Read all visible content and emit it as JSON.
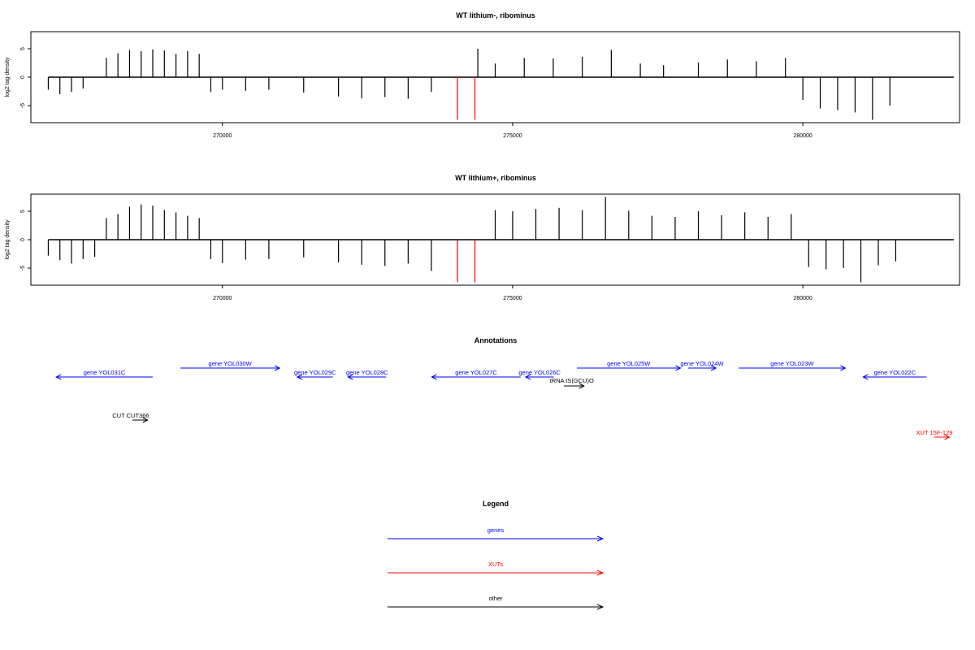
{
  "chart_data": [
    {
      "type": "bar",
      "title": "WT lithium-, ribominus",
      "ylabel": "log2 tag density",
      "xlim": [
        266700,
        282700
      ],
      "ylim": [
        -8,
        8
      ],
      "xticks": [
        270000,
        275000,
        280000
      ],
      "xtick_labels": [
        "270000",
        "275000",
        "280000"
      ],
      "yticks": [
        -5,
        0,
        5
      ],
      "ytick_labels": [
        "-5",
        "0",
        "5"
      ],
      "series": [
        {
          "color": "#000000",
          "x": [
            267000,
            267200,
            267400,
            267600,
            268000,
            268200,
            268400,
            268600,
            268800,
            269000,
            269200,
            269400,
            269600,
            269800,
            270000,
            270400,
            270800,
            271400,
            272000,
            272400,
            272800,
            273200,
            273600,
            274400,
            274700,
            275200,
            275700,
            276200,
            276700,
            277200,
            277600,
            278200,
            278700,
            279200,
            279700,
            280000,
            280300,
            280600,
            280900,
            281200,
            281500
          ],
          "values": [
            -2.2,
            -3.0,
            -2.6,
            -2.0,
            3.4,
            4.2,
            4.8,
            4.6,
            4.9,
            4.7,
            4.1,
            4.6,
            4.1,
            -2.6,
            -2.2,
            -2.4,
            -2.2,
            -2.7,
            -3.4,
            -3.7,
            -3.5,
            -3.8,
            -2.6,
            5.0,
            2.4,
            3.4,
            3.3,
            3.6,
            4.8,
            2.4,
            2.1,
            2.6,
            3.1,
            2.8,
            3.4,
            -4.0,
            -5.5,
            -5.8,
            -6.2,
            -7.5,
            -5.0
          ]
        },
        {
          "color": "#ff0000",
          "x": [
            274050,
            274350
          ],
          "values": [
            -7.5,
            -7.5
          ]
        }
      ]
    },
    {
      "type": "bar",
      "title": "WT lithium+, ribominus",
      "ylabel": "log2 tag density",
      "xlim": [
        266700,
        282700
      ],
      "ylim": [
        -8,
        8
      ],
      "xticks": [
        270000,
        275000,
        280000
      ],
      "xtick_labels": [
        "270000",
        "275000",
        "280000"
      ],
      "yticks": [
        -5,
        0,
        5
      ],
      "ytick_labels": [
        "-5",
        "0",
        "5"
      ],
      "series": [
        {
          "color": "#000000",
          "x": [
            267000,
            267200,
            267400,
            267600,
            267800,
            268000,
            268200,
            268400,
            268600,
            268800,
            269000,
            269200,
            269400,
            269600,
            269800,
            270000,
            270400,
            270800,
            271400,
            272000,
            272400,
            272800,
            273200,
            273600,
            274700,
            275000,
            275400,
            275800,
            276200,
            276600,
            277000,
            277400,
            277800,
            278200,
            278600,
            279000,
            279400,
            279800,
            280100,
            280400,
            280700,
            281000,
            281300,
            281600
          ],
          "values": [
            -2.8,
            -3.6,
            -4.2,
            -3.4,
            -3.0,
            3.8,
            4.5,
            5.8,
            6.2,
            6.0,
            5.2,
            4.8,
            4.2,
            3.8,
            -3.4,
            -4.1,
            -3.5,
            -3.4,
            -3.1,
            -4.0,
            -4.4,
            -4.6,
            -4.2,
            -5.5,
            5.2,
            5.0,
            5.4,
            5.6,
            5.2,
            7.5,
            5.1,
            4.2,
            4.0,
            5.0,
            4.3,
            4.8,
            4.0,
            4.5,
            -4.8,
            -5.2,
            -5.0,
            -7.5,
            -4.5,
            -3.8
          ]
        },
        {
          "color": "#ff0000",
          "x": [
            274050,
            274350
          ],
          "values": [
            -7.5,
            -7.5
          ]
        }
      ]
    }
  ],
  "annotations": {
    "title": "Annotations",
    "items": [
      {
        "label": "gene YOL031C",
        "color": "#0000ff",
        "start": 267200,
        "end": 269100,
        "strand": "-",
        "row": 1
      },
      {
        "label": "gene YOL030W",
        "color": "#0000ff",
        "start": 269650,
        "end": 271600,
        "strand": "+",
        "row": 0
      },
      {
        "label": "gene YOL029C",
        "color": "#0000ff",
        "start": 271950,
        "end": 272650,
        "strand": "-",
        "row": 1
      },
      {
        "label": "gene YOL028C",
        "color": "#0000ff",
        "start": 272950,
        "end": 273700,
        "strand": "-",
        "row": 1
      },
      {
        "label": "gene YOL027C",
        "color": "#0000ff",
        "start": 274600,
        "end": 276350,
        "strand": "-",
        "row": 1
      },
      {
        "label": "gene YOL026C",
        "color": "#0000ff",
        "start": 276450,
        "end": 277000,
        "strand": "-",
        "row": 1
      },
      {
        "label": "tRNA tS(GCU)O",
        "color": "#000000",
        "start": 277200,
        "end": 277600,
        "strand": "+",
        "row": 2
      },
      {
        "label": "gene YOL025W",
        "color": "#0000ff",
        "start": 277460,
        "end": 279500,
        "strand": "+",
        "row": 0
      },
      {
        "label": "gene YOL024W",
        "color": "#0000ff",
        "start": 279650,
        "end": 280200,
        "strand": "+",
        "row": 0
      },
      {
        "label": "gene YOL023W",
        "color": "#0000ff",
        "start": 280650,
        "end": 282750,
        "strand": "+",
        "row": 0
      },
      {
        "label": "gene YOL022C",
        "color": "#0000ff",
        "start": 283100,
        "end": 284350,
        "strand": "-",
        "row": 1
      },
      {
        "label": "CUT CUT366",
        "color": "#000000",
        "start": 268700,
        "end": 269000,
        "strand": "+",
        "row": 3
      },
      {
        "label": "XUT 15F-129",
        "color": "#ff0000",
        "start": 284500,
        "end": 284800,
        "strand": "+",
        "row": 4
      }
    ]
  },
  "legend": {
    "title": "Legend",
    "items": [
      {
        "label": "genes",
        "color": "#0000ff"
      },
      {
        "label": "XUTs",
        "color": "#ff0000"
      },
      {
        "label": "other",
        "color": "#000000"
      }
    ]
  }
}
